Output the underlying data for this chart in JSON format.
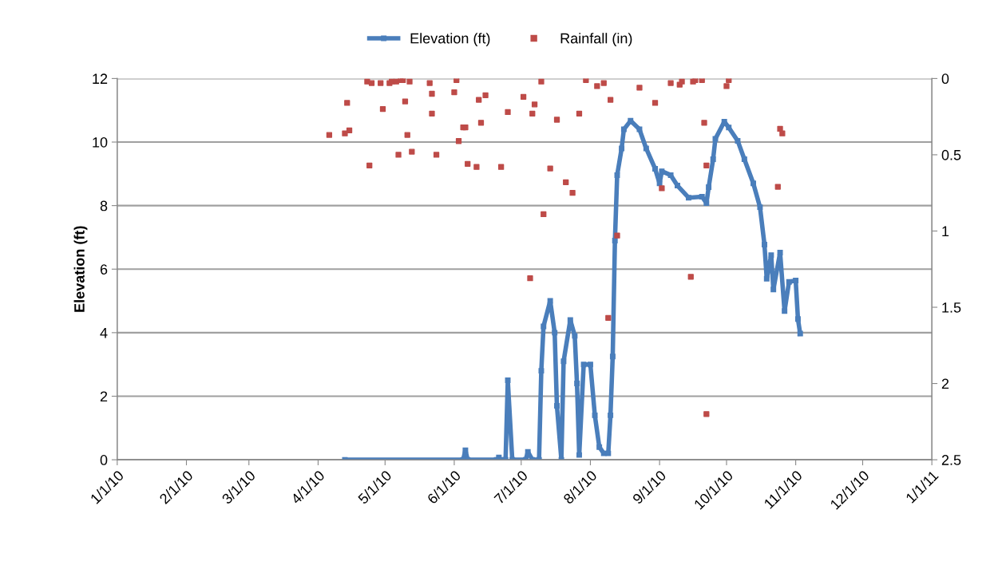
{
  "chart_data": {
    "type": "line",
    "ylabel": "Elevation (ft)",
    "legend": "top",
    "grid": "y",
    "marker": "square",
    "xlim": [
      "2010-01-01",
      "2011-01-01"
    ],
    "xticks": [
      {
        "value": "2010-01-01",
        "label": "1/1/10"
      },
      {
        "value": "2010-02-01",
        "label": "2/1/10"
      },
      {
        "value": "2010-03-01",
        "label": "3/1/10"
      },
      {
        "value": "2010-04-01",
        "label": "4/1/10"
      },
      {
        "value": "2010-05-01",
        "label": "5/1/10"
      },
      {
        "value": "2010-06-01",
        "label": "6/1/10"
      },
      {
        "value": "2010-07-01",
        "label": "7/1/10"
      },
      {
        "value": "2010-08-01",
        "label": "8/1/10"
      },
      {
        "value": "2010-09-01",
        "label": "9/1/10"
      },
      {
        "value": "2010-10-01",
        "label": "10/1/10"
      },
      {
        "value": "2010-11-01",
        "label": "11/1/10"
      },
      {
        "value": "2010-12-01",
        "label": "12/1/10"
      },
      {
        "value": "2011-01-01",
        "label": "1/1/11"
      }
    ],
    "ylim": [
      0,
      12
    ],
    "yticks": [
      0,
      2,
      4,
      6,
      8,
      10,
      12
    ],
    "y2lim": [
      2.5,
      0
    ],
    "y2ticks": [
      0,
      0.5,
      1,
      1.5,
      2,
      2.5
    ],
    "series": [
      {
        "name": "Elevation (ft)",
        "color": "#4a7ebb",
        "x": [
          "2010-04-13",
          "2010-06-05",
          "2010-06-06",
          "2010-06-07",
          "2010-06-20",
          "2010-06-21",
          "2010-06-22",
          "2010-06-24",
          "2010-06-25",
          "2010-06-27",
          "2010-07-03",
          "2010-07-04",
          "2010-07-06",
          "2010-07-09",
          "2010-07-10",
          "2010-07-11",
          "2010-07-14",
          "2010-07-16",
          "2010-07-17",
          "2010-07-19",
          "2010-07-20",
          "2010-07-23",
          "2010-07-25",
          "2010-07-26",
          "2010-07-27",
          "2010-07-29",
          "2010-08-01",
          "2010-08-03",
          "2010-08-05",
          "2010-08-07",
          "2010-08-09",
          "2010-08-10",
          "2010-08-11",
          "2010-08-12",
          "2010-08-13",
          "2010-08-15",
          "2010-08-16",
          "2010-08-19",
          "2010-08-23",
          "2010-08-26",
          "2010-08-30",
          "2010-09-01",
          "2010-09-02",
          "2010-09-06",
          "2010-09-09",
          "2010-09-14",
          "2010-09-20",
          "2010-09-22",
          "2010-09-23",
          "2010-09-25",
          "2010-09-26",
          "2010-09-30",
          "2010-10-02",
          "2010-10-06",
          "2010-10-09",
          "2010-10-13",
          "2010-10-16",
          "2010-10-18",
          "2010-10-19",
          "2010-10-21",
          "2010-10-22",
          "2010-10-25",
          "2010-10-27",
          "2010-10-29",
          "2010-11-01",
          "2010-11-02",
          "2010-11-03"
        ],
        "values": [
          0,
          0,
          0.3,
          0,
          0,
          0.07,
          0,
          0,
          2.5,
          0,
          0,
          0.25,
          0,
          0,
          2.8,
          4.2,
          5.0,
          4.0,
          1.7,
          0,
          3.1,
          4.4,
          3.9,
          2.4,
          0.15,
          3.0,
          3.0,
          1.4,
          0.4,
          0.2,
          0.2,
          1.4,
          3.25,
          6.9,
          8.96,
          9.8,
          10.4,
          10.67,
          10.4,
          9.8,
          9.16,
          8.7,
          9.08,
          8.96,
          8.63,
          8.25,
          8.28,
          8.08,
          8.58,
          9.46,
          10.1,
          10.64,
          10.46,
          10.04,
          9.46,
          8.7,
          7.95,
          6.77,
          5.7,
          6.44,
          5.36,
          6.52,
          4.68,
          5.6,
          5.64,
          4.43,
          3.97
        ]
      },
      {
        "name": "Rainfall (in)",
        "type": "scatter",
        "axis": "y2",
        "color": "#be4b48",
        "x": [
          "2010-04-06",
          "2010-04-13",
          "2010-04-14",
          "2010-04-15",
          "2010-04-23",
          "2010-04-24",
          "2010-04-25",
          "2010-04-29",
          "2010-04-30",
          "2010-05-03",
          "2010-05-04",
          "2010-05-06",
          "2010-05-07",
          "2010-05-08",
          "2010-05-09",
          "2010-05-10",
          "2010-05-11",
          "2010-05-12",
          "2010-05-13",
          "2010-05-21",
          "2010-05-22",
          "2010-05-22",
          "2010-05-24",
          "2010-06-01",
          "2010-06-02",
          "2010-06-03",
          "2010-06-05",
          "2010-06-06",
          "2010-06-07",
          "2010-06-11",
          "2010-06-12",
          "2010-06-13",
          "2010-06-15",
          "2010-06-22",
          "2010-06-25",
          "2010-07-02",
          "2010-07-05",
          "2010-07-06",
          "2010-07-07",
          "2010-07-10",
          "2010-07-11",
          "2010-07-14",
          "2010-07-17",
          "2010-07-21",
          "2010-07-24",
          "2010-07-27",
          "2010-07-30",
          "2010-08-04",
          "2010-08-07",
          "2010-08-09",
          "2010-08-10",
          "2010-08-13",
          "2010-08-23",
          "2010-08-30",
          "2010-09-02",
          "2010-09-06",
          "2010-09-10",
          "2010-09-11",
          "2010-09-15",
          "2010-09-16",
          "2010-09-17",
          "2010-09-20",
          "2010-09-21",
          "2010-09-22",
          "2010-09-22",
          "2010-10-01",
          "2010-10-02",
          "2010-10-24",
          "2010-10-25",
          "2010-10-26"
        ],
        "values": [
          0.37,
          0.36,
          0.16,
          0.34,
          0.02,
          0.57,
          0.03,
          0.03,
          0.2,
          0.03,
          0.02,
          0.02,
          0.5,
          0.01,
          0.01,
          0.15,
          0.37,
          0.02,
          0.48,
          0.03,
          0.1,
          0.23,
          0.5,
          0.09,
          0.01,
          0.41,
          0.32,
          0.32,
          0.56,
          0.58,
          0.14,
          0.29,
          0.11,
          0.58,
          0.22,
          0.12,
          1.31,
          0.23,
          0.17,
          0.02,
          0.89,
          0.59,
          0.27,
          0.68,
          0.75,
          0.23,
          0.01,
          0.05,
          0.03,
          1.57,
          0.14,
          1.03,
          0.06,
          0.16,
          0.72,
          0.03,
          0.04,
          0.02,
          1.3,
          0.02,
          0.01,
          0.01,
          0.29,
          0.57,
          2.2,
          0.05,
          0.01,
          0.71,
          0.33,
          0.36
        ]
      }
    ]
  }
}
